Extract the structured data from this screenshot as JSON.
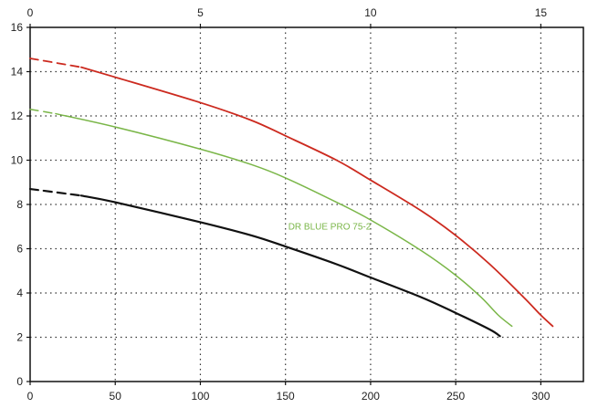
{
  "chart_data": {
    "type": "line",
    "title": "",
    "xlabel": "",
    "ylabel": "",
    "grid": true,
    "x_bottom": {
      "range": [
        0,
        325
      ],
      "ticks": [
        0,
        50,
        100,
        150,
        200,
        250,
        300
      ],
      "tick_labels": [
        "0",
        "50",
        "100",
        "150",
        "200",
        "250",
        "300"
      ]
    },
    "x_top": {
      "range": [
        0,
        16.25
      ],
      "ticks": [
        0,
        5,
        10,
        15
      ],
      "tick_labels": [
        "0",
        "5",
        "10",
        "15"
      ]
    },
    "y": {
      "range": [
        0,
        16
      ],
      "ticks": [
        0,
        2,
        4,
        6,
        8,
        10,
        12,
        14,
        16
      ],
      "tick_labels": [
        "0",
        "2",
        "4",
        "6",
        "8",
        "10",
        "12",
        "14",
        "16"
      ]
    },
    "annotation": {
      "text": "DR BLUE PRO 75-2",
      "color": "#7ab648",
      "x": 150,
      "y": 7.0
    },
    "series": [
      {
        "color": "#cc2a1f",
        "dashed_until_x": 30,
        "width": 1.8,
        "points": [
          [
            0,
            14.6
          ],
          [
            30,
            14.2
          ],
          [
            50,
            13.75
          ],
          [
            100,
            12.6
          ],
          [
            130,
            11.8
          ],
          [
            150,
            11.1
          ],
          [
            180,
            10.0
          ],
          [
            200,
            9.1
          ],
          [
            230,
            7.7
          ],
          [
            250,
            6.6
          ],
          [
            270,
            5.3
          ],
          [
            290,
            3.8
          ],
          [
            300,
            3.0
          ],
          [
            307,
            2.5
          ]
        ]
      },
      {
        "color": "#7ab648",
        "dashed_until_x": 15,
        "width": 1.5,
        "points": [
          [
            0,
            12.3
          ],
          [
            15,
            12.1
          ],
          [
            50,
            11.5
          ],
          [
            100,
            10.5
          ],
          [
            130,
            9.8
          ],
          [
            150,
            9.2
          ],
          [
            180,
            8.1
          ],
          [
            200,
            7.3
          ],
          [
            230,
            5.9
          ],
          [
            250,
            4.8
          ],
          [
            265,
            3.8
          ],
          [
            275,
            3.0
          ],
          [
            283,
            2.5
          ]
        ]
      },
      {
        "color": "#111111",
        "dashed_until_x": 30,
        "width": 2.2,
        "points": [
          [
            0,
            8.7
          ],
          [
            30,
            8.4
          ],
          [
            50,
            8.1
          ],
          [
            100,
            7.2
          ],
          [
            130,
            6.6
          ],
          [
            150,
            6.1
          ],
          [
            180,
            5.3
          ],
          [
            200,
            4.7
          ],
          [
            230,
            3.8
          ],
          [
            250,
            3.1
          ],
          [
            270,
            2.35
          ],
          [
            276,
            2.05
          ]
        ]
      }
    ]
  }
}
